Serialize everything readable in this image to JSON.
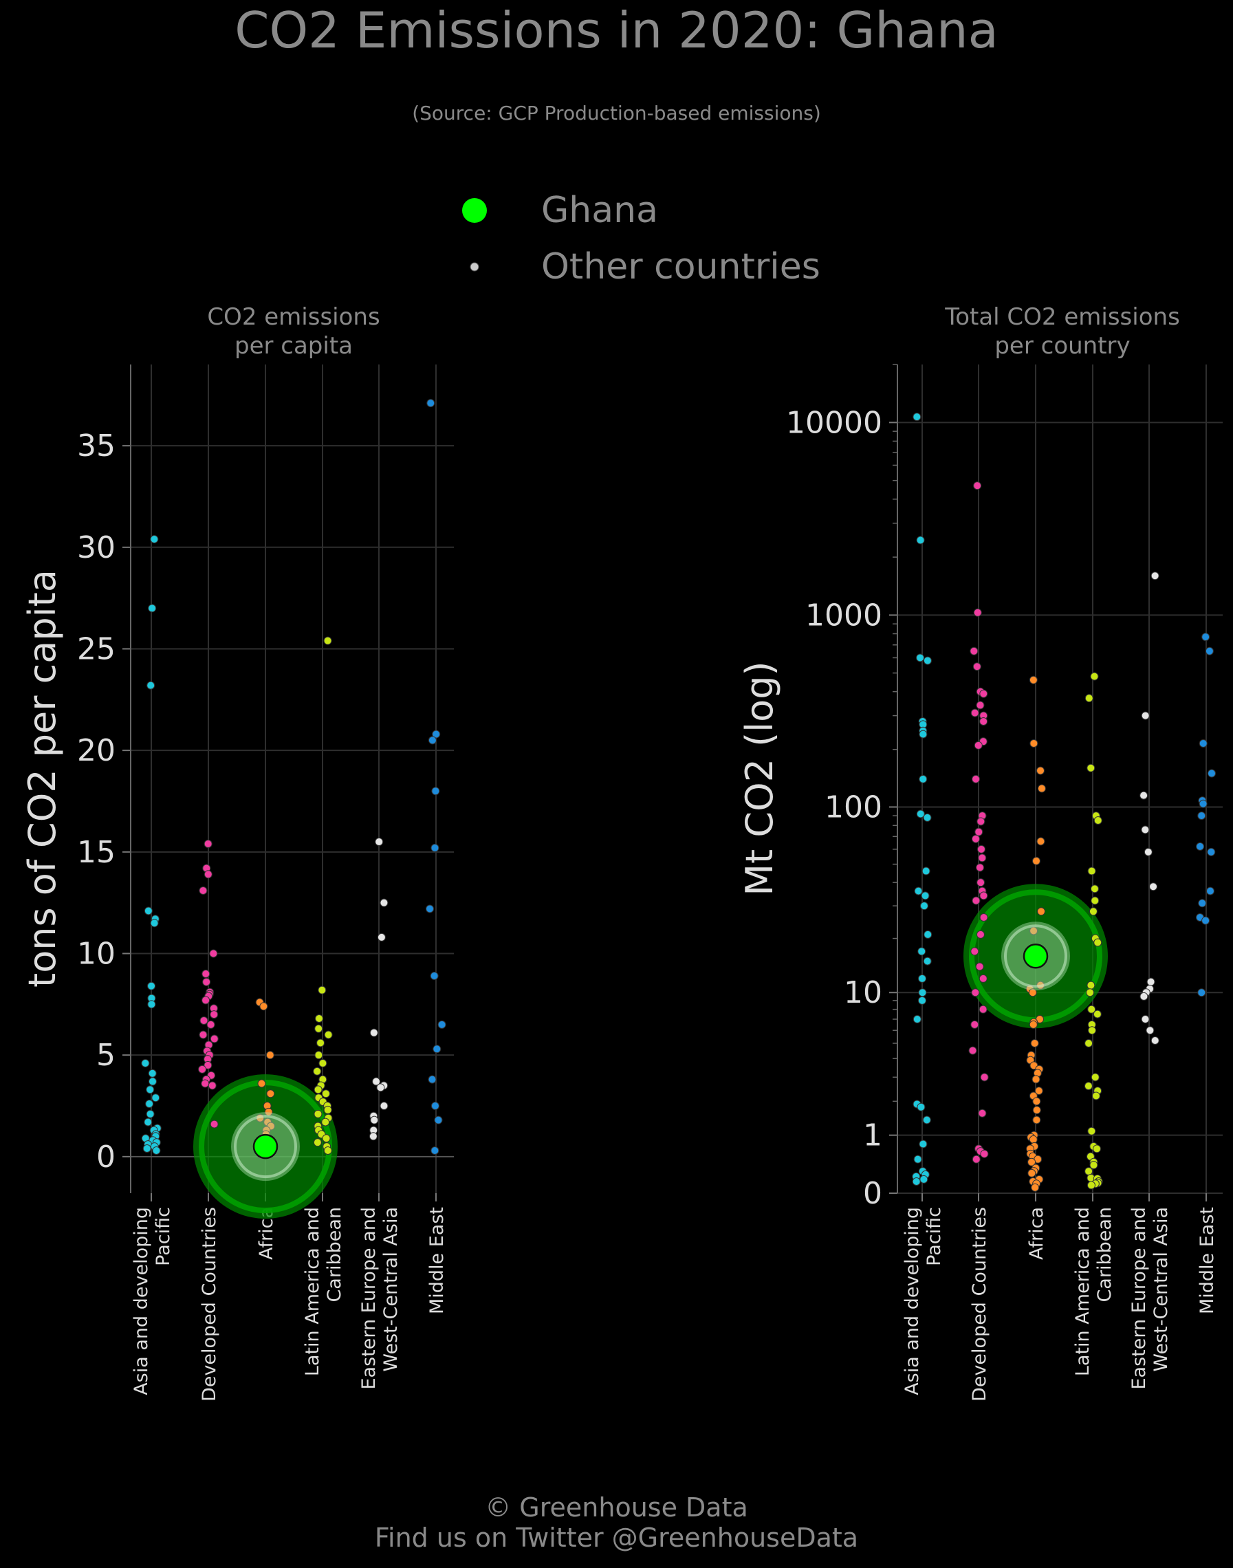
{
  "header": {
    "title": "CO2 Emissions in 2020: Ghana",
    "subtitle": "(Source: GCP Production-based emissions)"
  },
  "legend": {
    "items": [
      {
        "label": "Ghana",
        "color": "#00ff00"
      },
      {
        "label": "Other countries",
        "color": "#cccccc"
      }
    ]
  },
  "footer": {
    "line1": "© Greenhouse Data",
    "line2": "Find us on Twitter @GreenhouseData"
  },
  "colors": {
    "Asia and developing Pacific": "#1ec8dc",
    "Developed Countries": "#f03ca0",
    "Africa": "#ff8c28",
    "Latin America and Caribbean": "#c8e614",
    "Eastern Europe and West-Central Asia": "#e6e6e6",
    "Middle East": "#1e8cdc",
    "highlight": "#00ff00",
    "highlight_halo": "#008c00"
  },
  "chart_data": [
    {
      "type": "scatter",
      "title": "CO2 emissions\nper capita",
      "ylabel": "tons of CO2 per capita",
      "ylim": [
        -1.8,
        39
      ],
      "yscale": "linear",
      "yticks": [
        "0",
        "5",
        "10",
        "15",
        "20",
        "25",
        "30",
        "35"
      ],
      "grid": true,
      "categories": [
        "Asia and developing Pacific",
        "Developed Countries",
        "Africa",
        "Latin America and Caribbean",
        "Eastern Europe and West-Central Asia",
        "Middle East"
      ],
      "highlight": {
        "name": "Ghana",
        "category": "Africa",
        "value": 0.5
      },
      "series": [
        {
          "category": "Asia and developing Pacific",
          "values": [
            30.4,
            27.0,
            23.2,
            12.1,
            11.7,
            11.5,
            8.4,
            7.8,
            7.5,
            4.6,
            4.1,
            3.7,
            3.3,
            2.9,
            2.6,
            2.1,
            1.7,
            1.4,
            1.3,
            1.1,
            1.0,
            0.9,
            0.8,
            0.7,
            0.6,
            0.5,
            0.4,
            0.3
          ]
        },
        {
          "category": "Developed Countries",
          "values": [
            15.4,
            14.2,
            13.9,
            13.1,
            10.0,
            9.0,
            8.6,
            8.1,
            8.0,
            7.9,
            7.7,
            7.3,
            7.0,
            6.7,
            6.5,
            6.0,
            5.8,
            5.5,
            5.2,
            5.0,
            4.8,
            4.5,
            4.3,
            4.0,
            3.8,
            3.6,
            3.5,
            1.6
          ]
        },
        {
          "category": "Africa",
          "values": [
            7.6,
            7.4,
            5.0,
            3.6,
            3.1,
            2.5,
            2.2,
            1.9,
            1.7,
            1.5,
            1.3,
            1.1,
            0.9,
            0.8,
            0.6,
            0.5,
            0.4,
            0.3,
            0.2,
            0.15,
            0.1
          ]
        },
        {
          "category": "Latin America and Caribbean",
          "values": [
            25.4,
            8.2,
            6.8,
            6.3,
            6.0,
            5.6,
            5.0,
            4.6,
            4.2,
            3.8,
            3.5,
            3.3,
            3.1,
            2.9,
            2.7,
            2.5,
            2.3,
            2.1,
            1.9,
            1.7,
            1.5,
            1.3,
            1.1,
            0.9,
            0.7,
            0.5,
            0.3
          ]
        },
        {
          "category": "Eastern Europe and West-Central Asia",
          "values": [
            15.5,
            12.5,
            10.8,
            6.1,
            3.7,
            3.5,
            3.4,
            2.5,
            2.0,
            1.8,
            1.3,
            1.0
          ]
        },
        {
          "category": "Middle East",
          "values": [
            37.1,
            20.8,
            20.5,
            18.0,
            15.2,
            12.2,
            8.9,
            6.5,
            5.3,
            3.8,
            2.5,
            1.8,
            0.3
          ]
        }
      ]
    },
    {
      "type": "scatter",
      "title": "Total CO2 emissions\nper country",
      "ylabel": "Mt CO2 (log)",
      "yscale": "log",
      "ylim": [
        0,
        20000
      ],
      "yticks": [
        "0",
        "1",
        "10",
        "100",
        "1000",
        "10000"
      ],
      "grid": true,
      "categories": [
        "Asia and developing Pacific",
        "Developed Countries",
        "Africa",
        "Latin America and Caribbean",
        "Eastern Europe and West-Central Asia",
        "Middle East"
      ],
      "highlight": {
        "name": "Ghana",
        "category": "Africa",
        "value": 16
      },
      "series": [
        {
          "category": "Asia and developing Pacific",
          "values": [
            10700,
            2450,
            600,
            580,
            280,
            270,
            250,
            240,
            140,
            92,
            88,
            46,
            36,
            34,
            30,
            21,
            17,
            15,
            12,
            10,
            9,
            7,
            1.9,
            1.8,
            1.4,
            0.8,
            0.5,
            0.3,
            0.25,
            0.22,
            0.18,
            0.15
          ]
        },
        {
          "category": "Developed Countries",
          "values": [
            4700,
            1030,
            650,
            540,
            400,
            390,
            340,
            310,
            300,
            280,
            220,
            210,
            140,
            90,
            84,
            74,
            68,
            60,
            54,
            48,
            40,
            36,
            34,
            32,
            26,
            21,
            17,
            14,
            12,
            10,
            8,
            6.5,
            4.5,
            3,
            1.6,
            0.7,
            0.65,
            0.6,
            0.5
          ]
        },
        {
          "category": "Africa",
          "values": [
            460,
            215,
            155,
            125,
            66,
            52,
            28,
            22,
            11,
            10.5,
            10,
            7,
            6.7,
            6.5,
            5,
            4.2,
            3.9,
            3.6,
            3.4,
            3.2,
            2.9,
            2.4,
            2.2,
            2.0,
            1.7,
            1.4,
            1.0,
            0.95,
            0.9,
            0.75,
            0.7,
            0.6,
            0.55,
            0.5,
            0.45,
            0.35,
            0.3,
            0.27,
            0.18,
            0.15,
            0.12,
            0.07
          ]
        },
        {
          "category": "Latin America and Caribbean",
          "values": [
            480,
            370,
            160,
            90,
            85,
            46,
            37,
            32,
            28,
            20,
            19,
            11,
            10,
            8,
            7.5,
            6.5,
            6,
            5,
            3,
            2.6,
            2.4,
            2.2,
            1.1,
            0.75,
            0.7,
            0.55,
            0.45,
            0.4,
            0.3,
            0.2,
            0.19,
            0.15,
            0.13,
            0.12,
            0.1
          ]
        },
        {
          "category": "Eastern Europe and West-Central Asia",
          "values": [
            1600,
            300,
            115,
            76,
            58,
            38,
            11.5,
            10.5,
            10,
            9.5,
            7,
            6,
            5.2
          ]
        },
        {
          "category": "Middle East",
          "values": [
            770,
            650,
            215,
            150,
            108,
            104,
            90,
            62,
            58,
            36,
            31,
            26,
            25,
            10
          ]
        }
      ]
    }
  ]
}
